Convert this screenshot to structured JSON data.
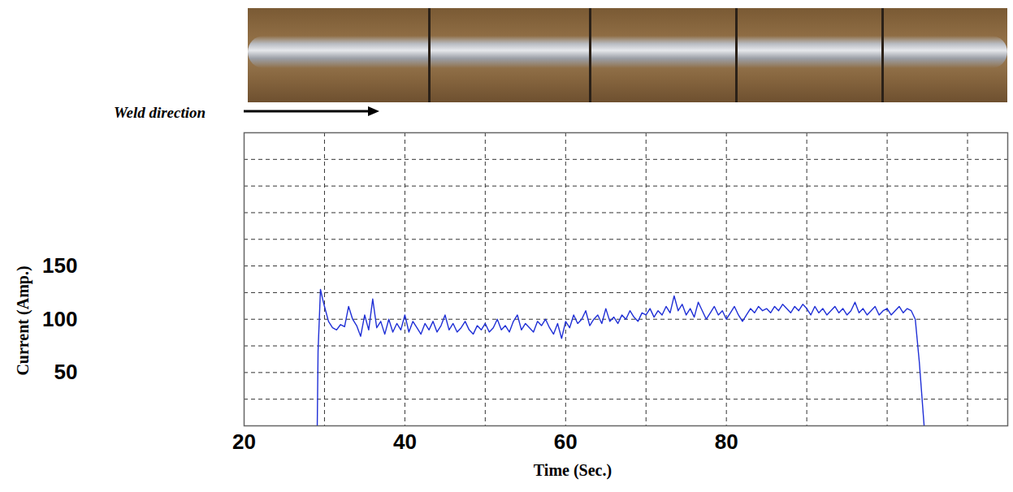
{
  "chart_data": {
    "type": "line",
    "annotation": "Weld direction",
    "x_label": "Time (Sec.)",
    "y_label": "Current (Amp.)",
    "color": "#1f2fd6",
    "grid": true,
    "xlim": [
      20,
      115
    ],
    "xticks": [
      20,
      40,
      60,
      80
    ],
    "ylim": [
      0,
      275
    ],
    "yticks": [
      50,
      100,
      150
    ],
    "x": [
      29.1,
      29.2,
      29.5,
      29.8,
      30.0,
      30.5,
      31.0,
      31.5,
      32.0,
      32.5,
      33.0,
      33.5,
      34.0,
      34.5,
      35.0,
      35.5,
      36.0,
      36.5,
      37.0,
      37.5,
      38.0,
      38.5,
      39.0,
      39.5,
      40.0,
      40.5,
      41.0,
      41.5,
      42.0,
      42.5,
      43.0,
      43.5,
      44.0,
      44.5,
      45.0,
      45.5,
      46.0,
      46.5,
      47.0,
      47.5,
      48.0,
      48.5,
      49.0,
      49.5,
      50.0,
      50.5,
      51.0,
      51.5,
      52.0,
      52.5,
      53.0,
      53.5,
      54.0,
      54.5,
      55.0,
      55.5,
      56.0,
      56.5,
      57.0,
      57.5,
      58.0,
      58.5,
      59.0,
      59.5,
      60.0,
      60.5,
      61.0,
      61.5,
      62.0,
      62.5,
      63.0,
      63.5,
      64.0,
      64.5,
      65.0,
      65.5,
      66.0,
      66.5,
      67.0,
      67.5,
      68.0,
      68.5,
      69.0,
      69.5,
      70.0,
      70.5,
      71.0,
      71.5,
      72.0,
      72.5,
      73.0,
      73.5,
      74.0,
      74.5,
      75.0,
      75.5,
      76.0,
      76.5,
      77.0,
      77.5,
      78.0,
      78.5,
      79.0,
      79.5,
      80.0,
      80.5,
      81.0,
      81.5,
      82.0,
      82.5,
      83.0,
      83.5,
      84.0,
      84.5,
      85.0,
      85.5,
      86.0,
      86.5,
      87.0,
      87.5,
      88.0,
      88.5,
      89.0,
      89.5,
      90.0,
      90.5,
      91.0,
      91.5,
      92.0,
      92.5,
      93.0,
      93.5,
      94.0,
      94.5,
      95.0,
      95.5,
      96.0,
      96.5,
      97.0,
      97.5,
      98.0,
      98.5,
      99.0,
      99.5,
      100.0,
      100.5,
      101.0,
      101.5,
      102.0,
      102.5,
      103.0,
      103.5,
      104.0,
      104.6
    ],
    "values": [
      0,
      70,
      128,
      118,
      112,
      98,
      92,
      90,
      95,
      93,
      112,
      100,
      94,
      84,
      104,
      90,
      119,
      92,
      98,
      86,
      100,
      88,
      96,
      90,
      104,
      88,
      98,
      92,
      86,
      96,
      90,
      98,
      88,
      94,
      104,
      90,
      96,
      88,
      92,
      98,
      90,
      86,
      94,
      90,
      96,
      88,
      92,
      100,
      90,
      94,
      88,
      98,
      104,
      90,
      96,
      92,
      88,
      98,
      94,
      100,
      92,
      86,
      96,
      82,
      98,
      92,
      104,
      96,
      100,
      108,
      94,
      100,
      104,
      96,
      110,
      98,
      102,
      96,
      104,
      100,
      108,
      102,
      98,
      106,
      104,
      110,
      102,
      108,
      104,
      112,
      106,
      122,
      108,
      114,
      104,
      110,
      102,
      116,
      108,
      100,
      106,
      112,
      104,
      108,
      100,
      106,
      112,
      104,
      98,
      104,
      110,
      106,
      112,
      108,
      110,
      106,
      112,
      108,
      114,
      110,
      106,
      112,
      108,
      114,
      110,
      104,
      112,
      106,
      110,
      104,
      108,
      112,
      106,
      110,
      104,
      108,
      116,
      106,
      110,
      104,
      108,
      112,
      104,
      108,
      110,
      104,
      108,
      112,
      106,
      110,
      108,
      100,
      60,
      0
    ]
  }
}
